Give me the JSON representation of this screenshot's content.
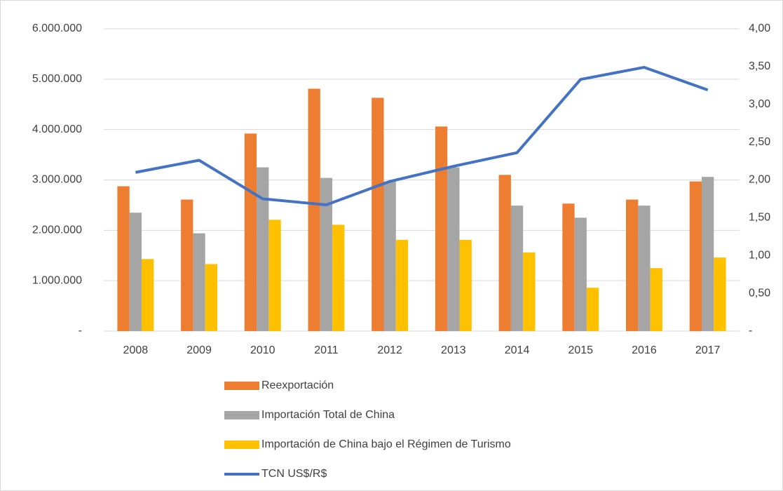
{
  "chart_data": {
    "type": "bar",
    "categories": [
      "2008",
      "2009",
      "2010",
      "2011",
      "2012",
      "2013",
      "2014",
      "2015",
      "2016",
      "2017"
    ],
    "series": [
      {
        "name": "Reexportación",
        "color": "#ed7d31",
        "values": [
          2875000,
          2610000,
          3920000,
          4810000,
          4630000,
          4060000,
          3100000,
          2530000,
          2610000,
          2970000
        ]
      },
      {
        "name": "Importación Total de China",
        "color": "#a5a5a5",
        "values": [
          2350000,
          1940000,
          3250000,
          3040000,
          2970000,
          3250000,
          2490000,
          2250000,
          2490000,
          3060000
        ]
      },
      {
        "name": "Importación de China bajo el Régimen de Turismo",
        "color": "#ffc000",
        "values": [
          1430000,
          1330000,
          2210000,
          2110000,
          1810000,
          1810000,
          1560000,
          860000,
          1250000,
          1460000
        ]
      },
      {
        "name": "TCN US$/R$",
        "color": "#4472c4",
        "type": "line",
        "axis": "y2",
        "values": [
          2.1,
          2.26,
          1.75,
          1.67,
          1.98,
          2.18,
          2.36,
          3.33,
          3.49,
          3.19
        ]
      }
    ],
    "ylim": [
      0,
      6000000
    ],
    "yticks": [
      {
        "value": 0,
        "label": "-"
      },
      {
        "value": 1000000,
        "label": "1.000.000"
      },
      {
        "value": 2000000,
        "label": "2.000.000"
      },
      {
        "value": 3000000,
        "label": "3.000.000"
      },
      {
        "value": 4000000,
        "label": "4.000.000"
      },
      {
        "value": 5000000,
        "label": "5.000.000"
      },
      {
        "value": 6000000,
        "label": "6.000.000"
      }
    ],
    "y2lim": [
      0,
      4
    ],
    "y2ticks": [
      {
        "value": 0,
        "label": "-"
      },
      {
        "value": 0.5,
        "label": "0,50"
      },
      {
        "value": 1,
        "label": "1,00"
      },
      {
        "value": 1.5,
        "label": "1,50"
      },
      {
        "value": 2,
        "label": "2,00"
      },
      {
        "value": 2.5,
        "label": "2,50"
      },
      {
        "value": 3,
        "label": "3,00"
      },
      {
        "value": 3.5,
        "label": "3,50"
      },
      {
        "value": 4,
        "label": "4,00"
      }
    ],
    "grid": true,
    "legend": "bottom"
  }
}
